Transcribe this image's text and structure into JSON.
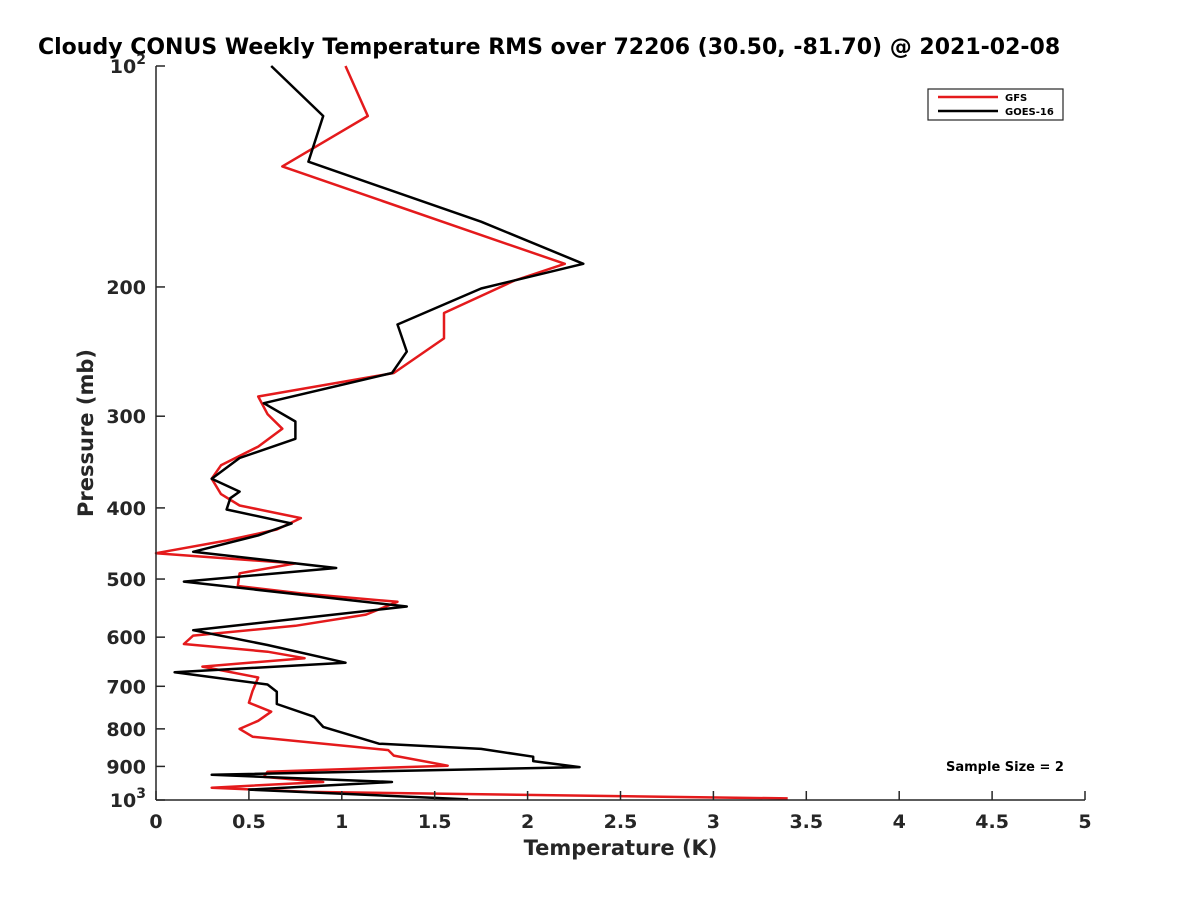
{
  "chart_data": {
    "type": "line",
    "title": "Cloudy CONUS Weekly Temperature RMS over 72206 (30.50, -81.70) @ 2021-02-08",
    "xlabel": "Temperature (K)",
    "ylabel": "Pressure (mb)",
    "xlim": [
      0,
      5
    ],
    "ylim": [
      100,
      1000
    ],
    "yscale": "log",
    "y_reversed": true,
    "grid": false,
    "legend_location": "top-right",
    "x_ticks": [
      0,
      0.5,
      1,
      1.5,
      2,
      2.5,
      3,
      3.5,
      4,
      4.5,
      5
    ],
    "x_tick_labels": [
      "0",
      "0.5",
      "1",
      "1.5",
      "2",
      "2.5",
      "3",
      "3.5",
      "4",
      "4.5",
      "5"
    ],
    "y_ticks": [
      {
        "value": 100,
        "base": "10",
        "exp": "2"
      },
      {
        "value": 200,
        "label": "200"
      },
      {
        "value": 300,
        "label": "300"
      },
      {
        "value": 400,
        "label": "400"
      },
      {
        "value": 500,
        "label": "500"
      },
      {
        "value": 600,
        "label": "600"
      },
      {
        "value": 700,
        "label": "700"
      },
      {
        "value": 800,
        "label": "800"
      },
      {
        "value": 900,
        "label": "900"
      },
      {
        "value": 1000,
        "base": "10",
        "exp": "3"
      }
    ],
    "annotation": "Sample Size = 2",
    "series": [
      {
        "name": "GFS",
        "color": "#e41a1c",
        "points": [
          [
            1.02,
            100
          ],
          [
            1.14,
            117
          ],
          [
            0.68,
            137
          ],
          [
            1.75,
            170
          ],
          [
            2.2,
            186
          ],
          [
            1.93,
            196
          ],
          [
            1.55,
            217
          ],
          [
            1.55,
            235
          ],
          [
            1.28,
            262
          ],
          [
            0.55,
            282
          ],
          [
            0.6,
            298
          ],
          [
            0.68,
            312
          ],
          [
            0.55,
            330
          ],
          [
            0.35,
            350
          ],
          [
            0.3,
            365
          ],
          [
            0.35,
            383
          ],
          [
            0.45,
            397
          ],
          [
            0.78,
            413
          ],
          [
            0.65,
            428
          ],
          [
            0.38,
            443
          ],
          [
            0.0,
            461
          ],
          [
            0.75,
            476
          ],
          [
            0.45,
            491
          ],
          [
            0.44,
            511
          ],
          [
            0.78,
            523
          ],
          [
            1.3,
            537
          ],
          [
            1.13,
            559
          ],
          [
            0.75,
            579
          ],
          [
            0.2,
            597
          ],
          [
            0.15,
            613
          ],
          [
            0.6,
            628
          ],
          [
            0.8,
            641
          ],
          [
            0.25,
            658
          ],
          [
            0.55,
            681
          ],
          [
            0.52,
            710
          ],
          [
            0.5,
            737
          ],
          [
            0.62,
            758
          ],
          [
            0.55,
            780
          ],
          [
            0.45,
            800
          ],
          [
            0.52,
            820
          ],
          [
            1.25,
            855
          ],
          [
            1.28,
            870
          ],
          [
            1.57,
            898
          ],
          [
            0.6,
            915
          ],
          [
            0.58,
            930
          ],
          [
            0.9,
            945
          ],
          [
            0.3,
            962
          ],
          [
            0.82,
            975
          ],
          [
            3.4,
            995
          ]
        ]
      },
      {
        "name": "GOES-16",
        "color": "#000000",
        "points": [
          [
            0.62,
            100
          ],
          [
            0.9,
            117
          ],
          [
            0.82,
            135
          ],
          [
            1.75,
            163
          ],
          [
            2.3,
            186
          ],
          [
            1.75,
            201
          ],
          [
            1.3,
            225
          ],
          [
            1.35,
            245
          ],
          [
            1.27,
            262
          ],
          [
            0.58,
            288
          ],
          [
            0.75,
            305
          ],
          [
            0.75,
            322
          ],
          [
            0.45,
            342
          ],
          [
            0.3,
            365
          ],
          [
            0.45,
            380
          ],
          [
            0.4,
            388
          ],
          [
            0.38,
            402
          ],
          [
            0.73,
            420
          ],
          [
            0.55,
            436
          ],
          [
            0.2,
            459
          ],
          [
            0.97,
            483
          ],
          [
            0.15,
            504
          ],
          [
            1.35,
            545
          ],
          [
            0.2,
            587
          ],
          [
            0.6,
            615
          ],
          [
            1.02,
            650
          ],
          [
            0.1,
            670
          ],
          [
            0.6,
            696
          ],
          [
            0.65,
            712
          ],
          [
            0.65,
            740
          ],
          [
            0.85,
            770
          ],
          [
            0.9,
            795
          ],
          [
            1.2,
            838
          ],
          [
            1.75,
            852
          ],
          [
            2.03,
            873
          ],
          [
            2.03,
            885
          ],
          [
            2.28,
            902
          ],
          [
            0.3,
            924
          ],
          [
            1.27,
            945
          ],
          [
            0.5,
            968
          ],
          [
            1.68,
            998
          ]
        ]
      }
    ]
  }
}
